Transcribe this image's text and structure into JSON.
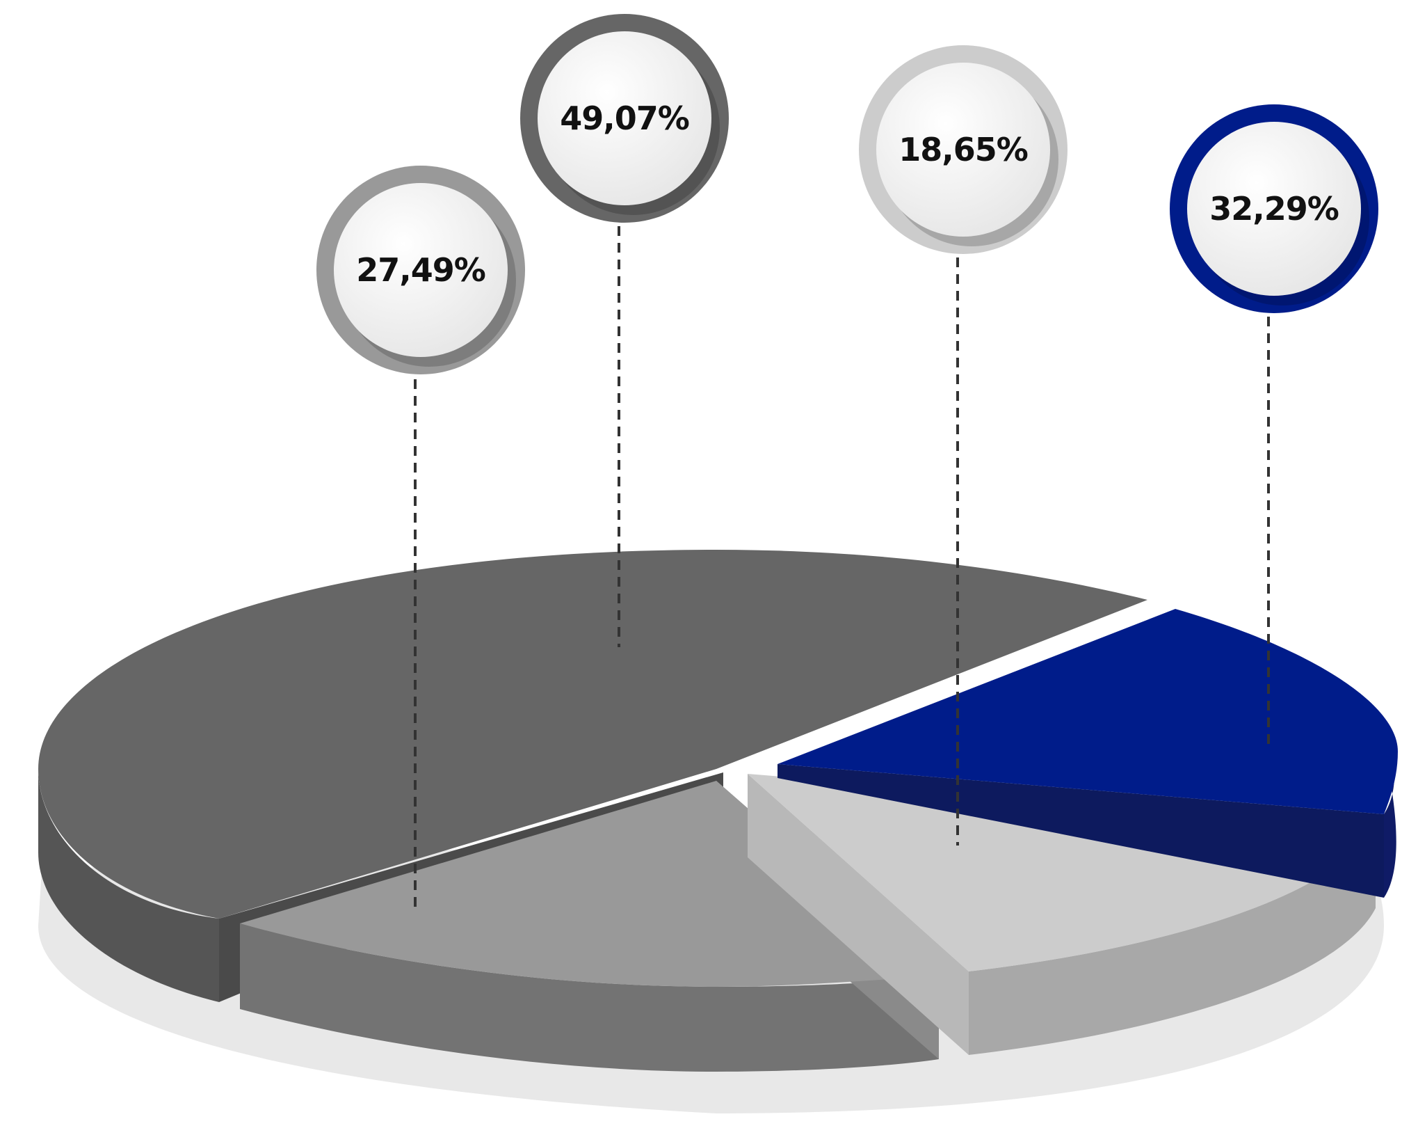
{
  "chart_data": {
    "type": "pie",
    "title": "",
    "style": "3d-exploded",
    "slices": [
      {
        "label": "49,07%",
        "value": 49.07,
        "color": "#666666"
      },
      {
        "label": "27,49%",
        "value": 27.49,
        "color": "#999999"
      },
      {
        "label": "18,65%",
        "value": 18.65,
        "color": "#cccccc"
      },
      {
        "label": "32,29%",
        "value": 32.29,
        "color": "#001c8a"
      }
    ],
    "legend": "none",
    "grid": false
  }
}
